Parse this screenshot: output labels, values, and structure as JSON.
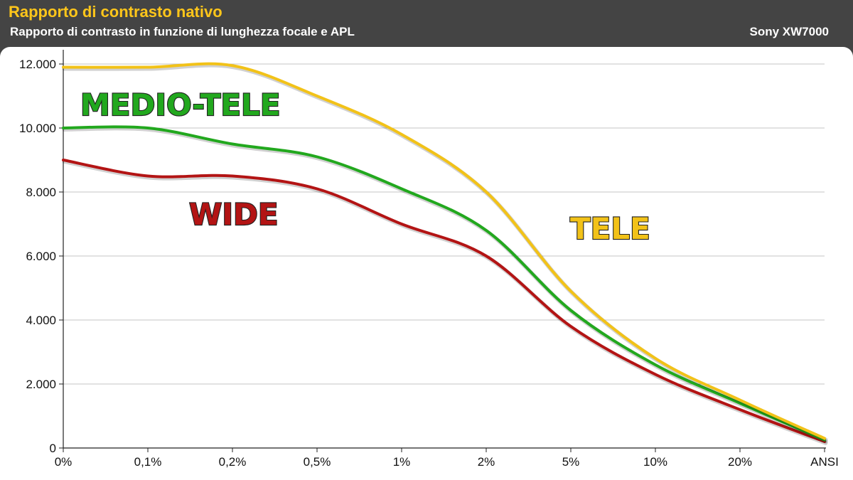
{
  "header": {
    "title": "Rapporto di contrasto nativo",
    "subtitle": "Rapporto di contrasto in funzione di lunghezza focale e APL",
    "brand": "Sony XW7000"
  },
  "colors": {
    "title": "#ffc61a",
    "header_bg": "#444444",
    "tele": "#f2c218",
    "medio_tele": "#22a81e",
    "wide": "#b31414"
  },
  "chart_data": {
    "type": "line",
    "categories": [
      "0%",
      "0,1%",
      "0,2%",
      "0,5%",
      "1%",
      "2%",
      "5%",
      "10%",
      "20%",
      "ANSI"
    ],
    "yticks": [
      "0",
      "2.000",
      "4.000",
      "6.000",
      "8.000",
      "10.000",
      "12.000"
    ],
    "ylim": [
      0,
      12000
    ],
    "grid": true,
    "series": [
      {
        "name": "TELE",
        "color": "#f2c218",
        "values": [
          11900,
          11900,
          11950,
          11000,
          9800,
          8000,
          4900,
          2800,
          1500,
          300
        ]
      },
      {
        "name": "MEDIO-TELE",
        "color": "#22a81e",
        "values": [
          10000,
          10000,
          9500,
          9100,
          8100,
          6800,
          4300,
          2600,
          1400,
          250
        ]
      },
      {
        "name": "WIDE",
        "color": "#b31414",
        "values": [
          9000,
          8500,
          8500,
          8100,
          7000,
          6000,
          3800,
          2300,
          1200,
          200
        ]
      }
    ]
  }
}
